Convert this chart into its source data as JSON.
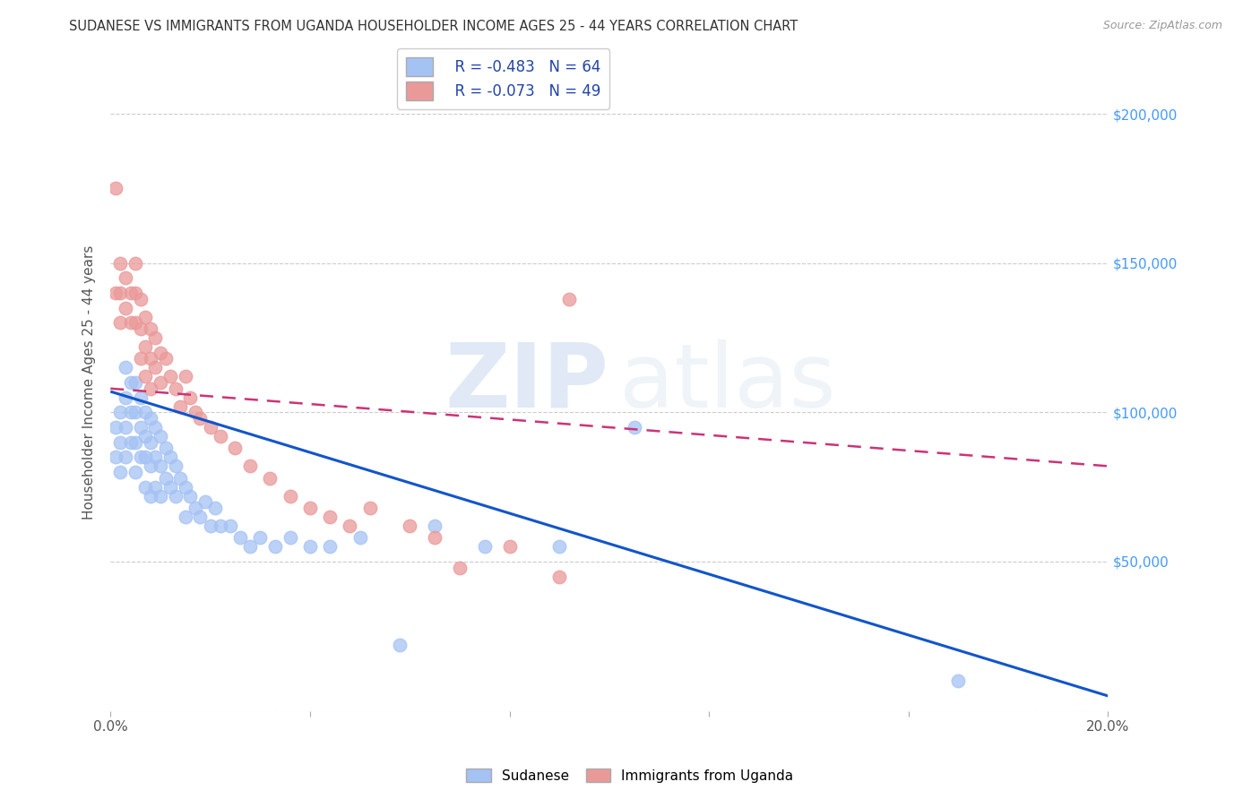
{
  "title": "SUDANESE VS IMMIGRANTS FROM UGANDA HOUSEHOLDER INCOME AGES 25 - 44 YEARS CORRELATION CHART",
  "source": "Source: ZipAtlas.com",
  "ylabel": "Householder Income Ages 25 - 44 years",
  "xlim": [
    0.0,
    0.2
  ],
  "ylim": [
    0,
    220000
  ],
  "legend_r_blue": "R = -0.483",
  "legend_n_blue": "N = 64",
  "legend_r_pink": "R = -0.073",
  "legend_n_pink": "N = 49",
  "blue_color": "#a4c2f4",
  "pink_color": "#ea9999",
  "blue_line_color": "#1155cc",
  "pink_line_color": "#cc3377",
  "blue_x": [
    0.001,
    0.001,
    0.002,
    0.002,
    0.002,
    0.003,
    0.003,
    0.003,
    0.003,
    0.004,
    0.004,
    0.004,
    0.005,
    0.005,
    0.005,
    0.005,
    0.006,
    0.006,
    0.006,
    0.007,
    0.007,
    0.007,
    0.007,
    0.008,
    0.008,
    0.008,
    0.008,
    0.009,
    0.009,
    0.009,
    0.01,
    0.01,
    0.01,
    0.011,
    0.011,
    0.012,
    0.012,
    0.013,
    0.013,
    0.014,
    0.015,
    0.015,
    0.016,
    0.017,
    0.018,
    0.019,
    0.02,
    0.021,
    0.022,
    0.024,
    0.026,
    0.028,
    0.03,
    0.033,
    0.036,
    0.04,
    0.044,
    0.05,
    0.058,
    0.065,
    0.075,
    0.09,
    0.105,
    0.17
  ],
  "blue_y": [
    95000,
    85000,
    100000,
    90000,
    80000,
    115000,
    105000,
    95000,
    85000,
    110000,
    100000,
    90000,
    110000,
    100000,
    90000,
    80000,
    105000,
    95000,
    85000,
    100000,
    92000,
    85000,
    75000,
    98000,
    90000,
    82000,
    72000,
    95000,
    85000,
    75000,
    92000,
    82000,
    72000,
    88000,
    78000,
    85000,
    75000,
    82000,
    72000,
    78000,
    75000,
    65000,
    72000,
    68000,
    65000,
    70000,
    62000,
    68000,
    62000,
    62000,
    58000,
    55000,
    58000,
    55000,
    58000,
    55000,
    55000,
    58000,
    22000,
    62000,
    55000,
    55000,
    95000,
    10000
  ],
  "pink_x": [
    0.001,
    0.001,
    0.002,
    0.002,
    0.002,
    0.003,
    0.003,
    0.004,
    0.004,
    0.005,
    0.005,
    0.005,
    0.006,
    0.006,
    0.006,
    0.007,
    0.007,
    0.007,
    0.008,
    0.008,
    0.008,
    0.009,
    0.009,
    0.01,
    0.01,
    0.011,
    0.012,
    0.013,
    0.014,
    0.015,
    0.016,
    0.017,
    0.018,
    0.02,
    0.022,
    0.025,
    0.028,
    0.032,
    0.036,
    0.04,
    0.044,
    0.048,
    0.052,
    0.06,
    0.065,
    0.07,
    0.08,
    0.09,
    0.092
  ],
  "pink_y": [
    175000,
    140000,
    150000,
    140000,
    130000,
    145000,
    135000,
    140000,
    130000,
    150000,
    140000,
    130000,
    138000,
    128000,
    118000,
    132000,
    122000,
    112000,
    128000,
    118000,
    108000,
    125000,
    115000,
    120000,
    110000,
    118000,
    112000,
    108000,
    102000,
    112000,
    105000,
    100000,
    98000,
    95000,
    92000,
    88000,
    82000,
    78000,
    72000,
    68000,
    65000,
    62000,
    68000,
    62000,
    58000,
    48000,
    55000,
    45000,
    138000
  ],
  "blue_trend_x": [
    0.0,
    0.2
  ],
  "blue_trend_y": [
    107000,
    5000
  ],
  "pink_trend_x": [
    0.0,
    0.2
  ],
  "pink_trend_y": [
    108000,
    82000
  ]
}
